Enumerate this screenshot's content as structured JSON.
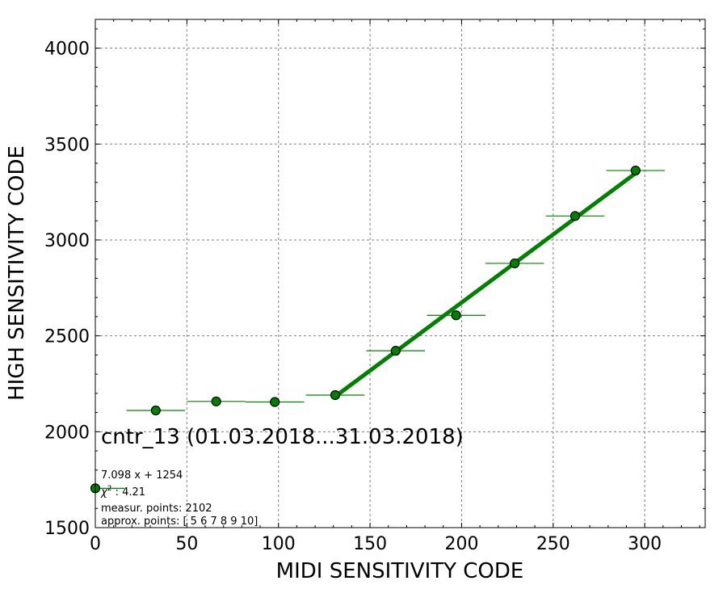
{
  "chart_data": {
    "type": "scatter",
    "xlabel": "MIDI SENSITIVITY CODE",
    "ylabel": "HIGH SENSITIVITY CODE",
    "xlim": [
      0,
      333
    ],
    "ylim": [
      1500,
      4150
    ],
    "xticks": [
      "0",
      "50",
      "100",
      "150",
      "200",
      "250",
      "300"
    ],
    "yticks": [
      "1500",
      "2000",
      "2500",
      "3000",
      "3500",
      "4000"
    ],
    "grid": true,
    "point_color": "#008000",
    "line_color": "#008000",
    "points": [
      {
        "x": 0,
        "y": 1705,
        "xerr": 16
      },
      {
        "x": 33,
        "y": 2111,
        "xerr": 16
      },
      {
        "x": 66,
        "y": 2158,
        "xerr": 16
      },
      {
        "x": 98,
        "y": 2155,
        "xerr": 16
      },
      {
        "x": 131,
        "y": 2191,
        "xerr": 16
      },
      {
        "x": 164,
        "y": 2422,
        "xerr": 16
      },
      {
        "x": 197,
        "y": 2607,
        "xerr": 16
      },
      {
        "x": 229,
        "y": 2878,
        "xerr": 16
      },
      {
        "x": 262,
        "y": 3125,
        "xerr": 16
      },
      {
        "x": 295,
        "y": 3362,
        "xerr": 16
      }
    ],
    "fit": {
      "slope": 7.098,
      "intercept": 1254,
      "x_range": [
        131,
        295
      ]
    },
    "annotations": {
      "title": "cntr_13 (01.03.2018...31.03.2018)",
      "fit_label": "7.098 x + 1254",
      "chi2_symbol": "χ",
      "chi2_exp": "2",
      "chi2_value": " : 4.21",
      "measur_points": "measur. points: 2102",
      "approx_points": "approx. points: [ 5  6  7  8  9 10]"
    }
  }
}
